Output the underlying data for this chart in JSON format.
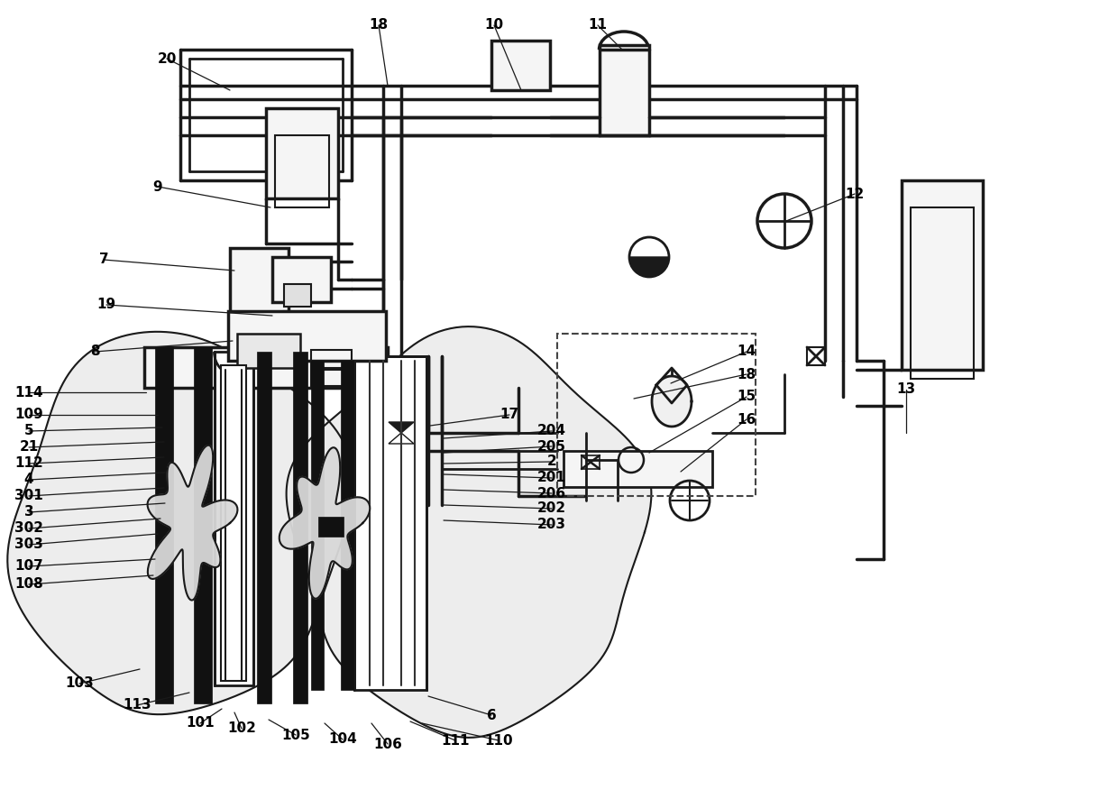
{
  "bg_color": "#ffffff",
  "lc": "#1a1a1a",
  "lw": 1.8,
  "fig_w": 12.4,
  "fig_h": 8.76,
  "dpi": 100
}
